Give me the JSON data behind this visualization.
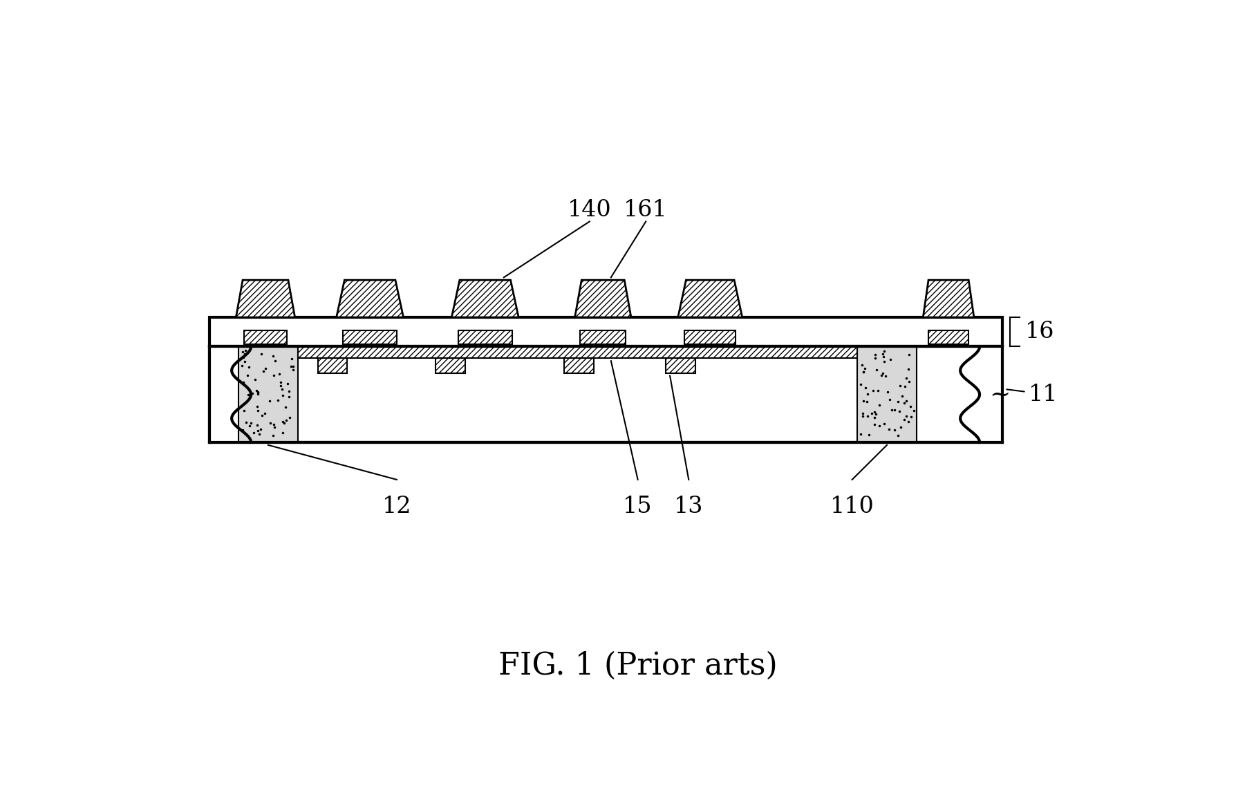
{
  "bg_color": "#ffffff",
  "line_color": "#000000",
  "fig_label": "FIG. 1 (Prior arts)",
  "fig_label_fontsize": 32,
  "label_fontsize": 24,
  "lw_thick": 3.0,
  "lw_med": 2.0,
  "lw_thin": 1.5
}
